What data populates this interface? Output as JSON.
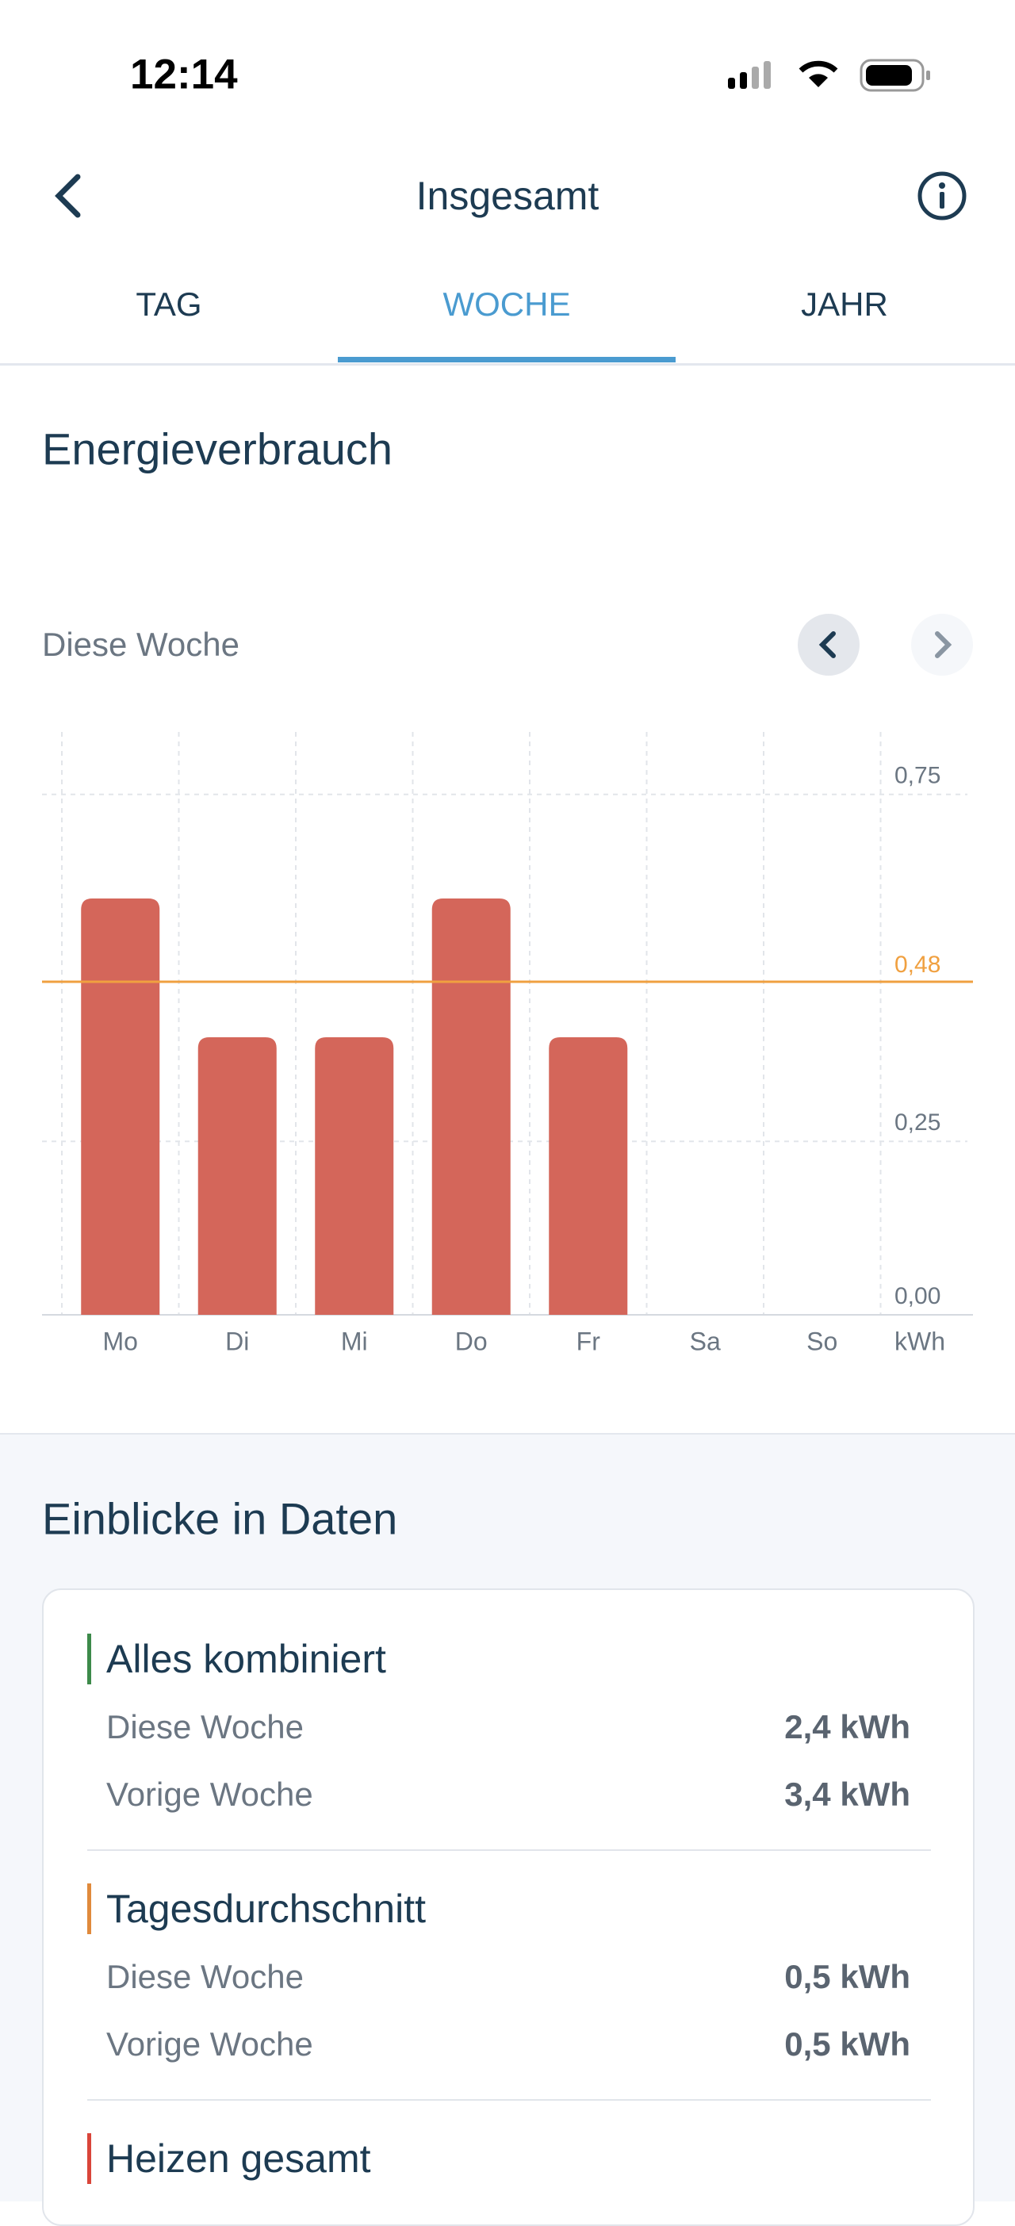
{
  "status_bar": {
    "time": "12:14"
  },
  "header": {
    "title": "Insgesamt"
  },
  "tabs": [
    "TAG",
    "WOCHE",
    "JAHR"
  ],
  "section_title": "Energieverbrauch",
  "period_label": "Diese Woche",
  "chart_data": {
    "type": "bar",
    "categories": [
      "Mo",
      "Di",
      "Mi",
      "Do",
      "Fr",
      "Sa",
      "So"
    ],
    "values": [
      0.6,
      0.4,
      0.4,
      0.6,
      0.4,
      null,
      null
    ],
    "color": "#d4665a",
    "ylim": [
      0,
      0.84
    ],
    "yticks": [
      {
        "value": 0,
        "label": "0,00"
      },
      {
        "value": 0.25,
        "label": "0,25"
      },
      {
        "value": 0.75,
        "label": "0,75"
      }
    ],
    "average": {
      "value": 0.48,
      "label": "0,48",
      "color": "#f0a040"
    },
    "unit": "kWh",
    "grid": true
  },
  "insights": {
    "title": "Einblicke in Daten",
    "groups": [
      {
        "title": "Alles kombiniert",
        "color": "#3d8a4a",
        "rows": [
          {
            "label": "Diese Woche",
            "value": "2,4 kWh"
          },
          {
            "label": "Vorige Woche",
            "value": "3,4 kWh"
          }
        ]
      },
      {
        "title": "Tagesdurchschnitt",
        "color": "#e08a3c",
        "rows": [
          {
            "label": "Diese Woche",
            "value": "0,5 kWh"
          },
          {
            "label": "Vorige Woche",
            "value": "0,5 kWh"
          }
        ]
      },
      {
        "title": "Heizen gesamt",
        "color": "#d9453a"
      }
    ]
  }
}
